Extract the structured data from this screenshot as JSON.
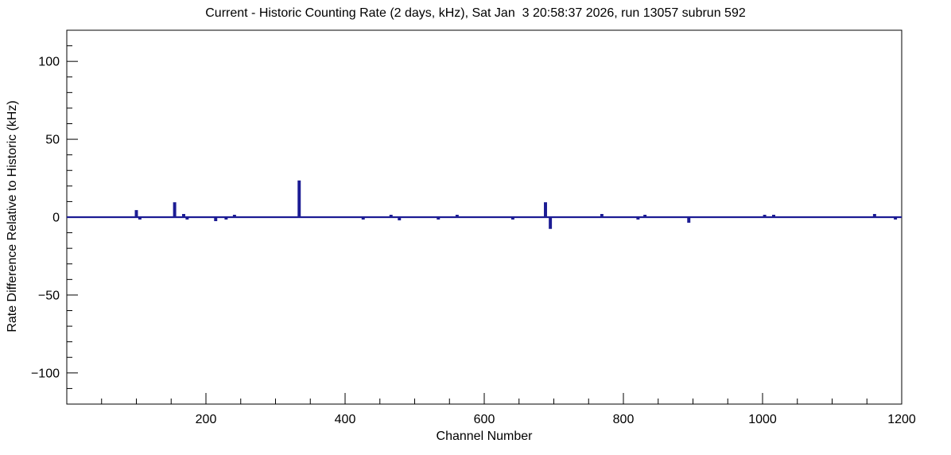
{
  "chart_data": {
    "type": "line",
    "title": "Current - Historic Counting Rate (2 days, kHz), Sat Jan  3 20:58:37 2026, run 13057 subrun 592",
    "xlabel": "Channel Number",
    "ylabel": "Rate Difference Relative to Historic (kHz)",
    "xlim": [
      0,
      1200
    ],
    "ylim": [
      -120,
      120
    ],
    "x_major_ticks": [
      200,
      400,
      600,
      800,
      1000,
      1200
    ],
    "x_minor_step": 50,
    "y_major_ticks": [
      -100,
      -50,
      0,
      50,
      100
    ],
    "y_minor_step": 10,
    "grid": false,
    "legend": "none",
    "baseline": 0,
    "line_color": "#1c1c94",
    "frame_color": "#000000",
    "spikes": [
      {
        "channel": 99,
        "value": 4
      },
      {
        "channel": 104,
        "value": -1
      },
      {
        "channel": 154,
        "value": 9
      },
      {
        "channel": 167,
        "value": 1.5
      },
      {
        "channel": 172,
        "value": -1
      },
      {
        "channel": 213,
        "value": -2
      },
      {
        "channel": 228,
        "value": -1
      },
      {
        "channel": 240,
        "value": 1
      },
      {
        "channel": 333,
        "value": 23
      },
      {
        "channel": 425,
        "value": -1
      },
      {
        "channel": 465,
        "value": 1
      },
      {
        "channel": 477,
        "value": -1.5
      },
      {
        "channel": 533,
        "value": -1
      },
      {
        "channel": 560,
        "value": 1
      },
      {
        "channel": 640,
        "value": -1
      },
      {
        "channel": 687,
        "value": 9
      },
      {
        "channel": 694,
        "value": -7
      },
      {
        "channel": 768,
        "value": 1.5
      },
      {
        "channel": 820,
        "value": -1
      },
      {
        "channel": 830,
        "value": 1
      },
      {
        "channel": 893,
        "value": -3
      },
      {
        "channel": 1002,
        "value": 1
      },
      {
        "channel": 1015,
        "value": 1
      },
      {
        "channel": 1160,
        "value": 1.5
      },
      {
        "channel": 1190,
        "value": -1
      }
    ]
  }
}
